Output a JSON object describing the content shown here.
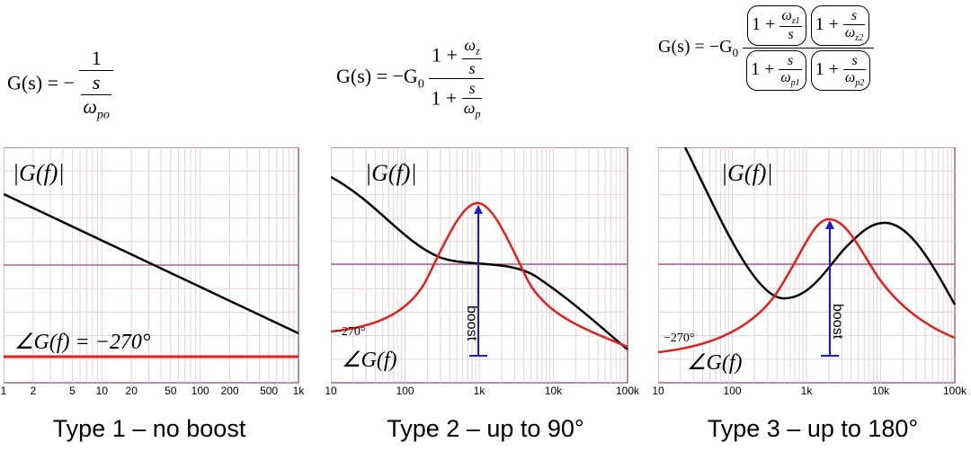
{
  "panels": [
    {
      "caption": "Type 1 – no boost",
      "equation": {
        "lhs": "G(s) = −",
        "num": "1",
        "den_num": "s",
        "den_den": "ω",
        "den_den_sub": "po"
      },
      "mag_label": "|G(f)|",
      "phase_label": "∠G(f) = −270°",
      "x_ticks": [
        "1",
        "2",
        "5",
        "10",
        "20",
        "50",
        "100",
        "200",
        "500",
        "1k"
      ]
    },
    {
      "caption": "Type 2 – up to 90°",
      "equation": {
        "lhs": "G(s) = −G",
        "lhs_sub": "0",
        "num_a": "1 +",
        "num_frac_num": "ω",
        "num_frac_num_sub": "z",
        "num_frac_den": "s",
        "den_a": "1 +",
        "den_frac_num": "s",
        "den_frac_den": "ω",
        "den_frac_den_sub": "p"
      },
      "mag_label": "|G(f)|",
      "phase_label": "∠G(f)",
      "phase_ref": "−270°",
      "boost_label": "boost",
      "x_ticks": [
        "10",
        "100",
        "1k",
        "10k",
        "100k"
      ]
    },
    {
      "caption": "Type 3 – up to 180°",
      "equation": {
        "lhs": "G(s) = −G",
        "lhs_sub": "0",
        "n1_a": "1 +",
        "n1_num": "ω",
        "n1_num_sub": "z1",
        "n1_den": "s",
        "n2_a": "1 +",
        "n2_num": "s",
        "n2_den": "ω",
        "n2_den_sub": "z2",
        "d1_a": "1 +",
        "d1_num": "s",
        "d1_den": "ω",
        "d1_den_sub": "p1",
        "d2_a": "1 +",
        "d2_num": "s",
        "d2_den": "ω",
        "d2_den_sub": "p2"
      },
      "mag_label": "|G(f)|",
      "phase_label": "∠G(f)",
      "phase_ref": "−270°",
      "boost_label": "boost",
      "x_ticks": [
        "10",
        "100",
        "1k",
        "10k",
        "100k"
      ]
    }
  ],
  "colors": {
    "grid": "#d9c8d4",
    "frame": "#9b6b88",
    "midline": "#8a4d73",
    "magnitude": "#000000",
    "phase": "#e0201b",
    "boost": "#1a1ad6"
  }
}
